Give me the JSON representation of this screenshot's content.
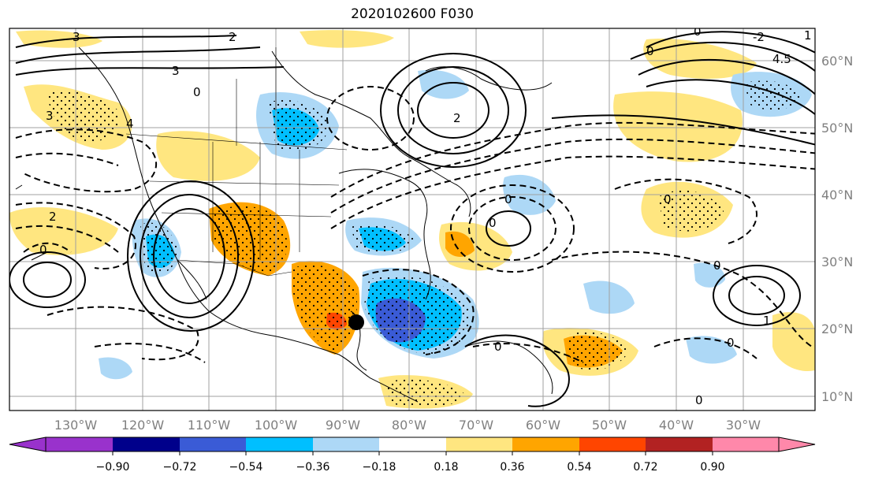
{
  "title": "2020102600 F030",
  "map": {
    "lon_labels": [
      "130°W",
      "120°W",
      "110°W",
      "100°W",
      "90°W",
      "80°W",
      "70°W",
      "60°W",
      "50°W",
      "40°W",
      "30°W"
    ],
    "lat_labels": [
      "60°N",
      "50°N",
      "40°N",
      "30°N",
      "20°N",
      "10°N"
    ],
    "contour_labels": [
      "3",
      "3",
      "3",
      "4",
      "0",
      "2",
      "1",
      "0",
      "-2",
      "4.5",
      "2",
      "0",
      "0",
      "0",
      "2",
      "0",
      "0",
      "0",
      "0",
      "1",
      "0",
      "0"
    ],
    "marker": "black-dot"
  },
  "colorbar": {
    "levels": [
      "−0.90",
      "−0.72",
      "−0.54",
      "−0.36",
      "−0.18",
      "0.18",
      "0.36",
      "0.54",
      "0.72",
      "0.90"
    ],
    "colors": [
      "#9932cc",
      "#00008b",
      "#3a5bd6",
      "#00bfff",
      "#add8f6",
      "#ffffff",
      "#ffe680",
      "#ffa500",
      "#ff4500",
      "#b22222",
      "#ff88aa"
    ]
  },
  "colors": {
    "pos_weak": "#ffe680",
    "pos_mod": "#ffa500",
    "pos_strong": "#ff4500",
    "neg_weak": "#add8f6",
    "neg_mod": "#00bfff",
    "neg_strong": "#3a5bd6"
  }
}
